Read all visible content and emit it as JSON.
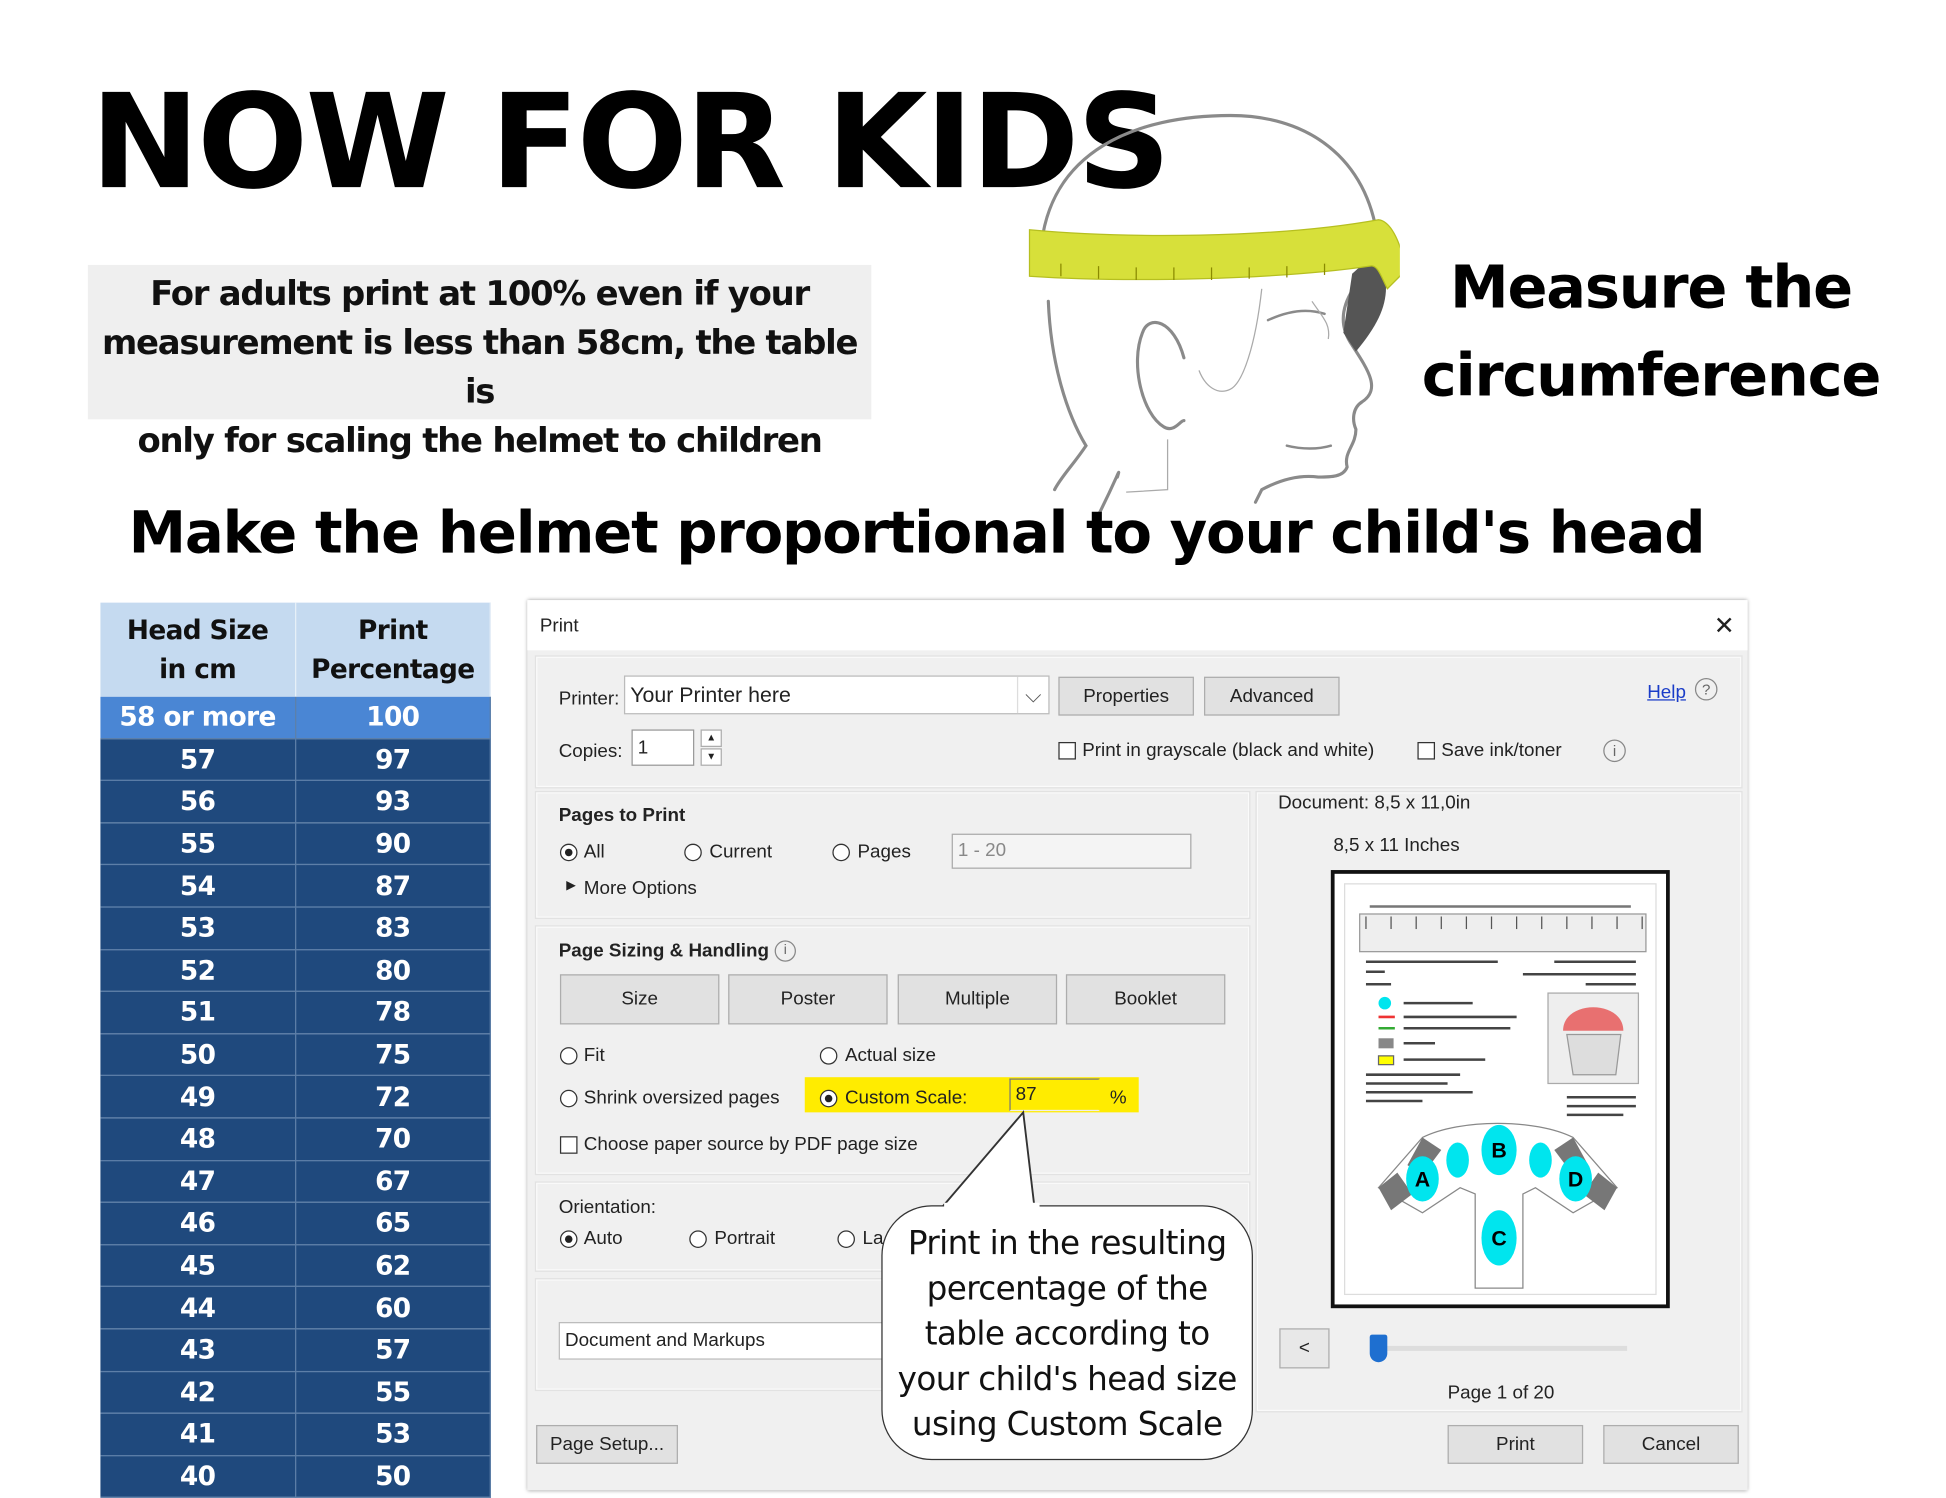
{
  "poster": {
    "title": "NOW FOR KIDS",
    "note_lines": [
      "For adults print at 100% even if your",
      "measurement is less than 58cm, the table is",
      "only for scaling the helmet to children"
    ],
    "measure_lines": [
      "Measure the",
      "circumference"
    ],
    "subtitle": "Make the helmet proportional to your child's head",
    "callout_lines": [
      "Print in the resulting",
      "percentage of the",
      "table according to",
      "your child's head size",
      "using Custom Scale"
    ]
  },
  "table": {
    "headers": [
      [
        "Head Size",
        "in cm"
      ],
      [
        "Print",
        "Percentage"
      ]
    ],
    "rows": [
      [
        "58 or more",
        "100"
      ],
      [
        "57",
        "97"
      ],
      [
        "56",
        "93"
      ],
      [
        "55",
        "90"
      ],
      [
        "54",
        "87"
      ],
      [
        "53",
        "83"
      ],
      [
        "52",
        "80"
      ],
      [
        "51",
        "78"
      ],
      [
        "50",
        "75"
      ],
      [
        "49",
        "72"
      ],
      [
        "48",
        "70"
      ],
      [
        "47",
        "67"
      ],
      [
        "46",
        "65"
      ],
      [
        "45",
        "62"
      ],
      [
        "44",
        "60"
      ],
      [
        "43",
        "57"
      ],
      [
        "42",
        "55"
      ],
      [
        "41",
        "53"
      ],
      [
        "40",
        "50"
      ]
    ],
    "colors": {
      "header": "#c5daf0",
      "highlight": "#4a86d4",
      "row": "#1f497d"
    }
  },
  "dialog": {
    "title": "Print",
    "printer_label": "Printer:",
    "printer_value": "Your Printer here",
    "properties": "Properties",
    "advanced": "Advanced",
    "help": "Help",
    "copies_label": "Copies:",
    "copies_value": "1",
    "grayscale": "Print in grayscale (black and white)",
    "save_ink": "Save ink/toner",
    "pages_to_print": {
      "heading": "Pages to Print",
      "all": "All",
      "current": "Current",
      "pages": "Pages",
      "pages_placeholder": "1 - 20",
      "more_options": "More Options",
      "selected": "All"
    },
    "sizing": {
      "heading": "Page Sizing & Handling",
      "tabs": [
        "Size",
        "Poster",
        "Multiple",
        "Booklet"
      ],
      "fit": "Fit",
      "actual_size": "Actual size",
      "shrink": "Shrink oversized pages",
      "custom_scale": "Custom Scale:",
      "custom_scale_value": "87",
      "percent": "%",
      "paper_source": "Choose paper source by PDF page size",
      "selected": "Custom Scale",
      "highlight_color": "#ffec00"
    },
    "orientation": {
      "heading": "Orientation:",
      "auto": "Auto",
      "portrait": "Portrait",
      "landscape_partial": "La",
      "selected": "Auto"
    },
    "comments_forms_value": "Document and Markups",
    "preview": {
      "document_size": "Document: 8,5 x 11,0in",
      "paper_size": "8,5 x 11 Inches",
      "piece_labels": [
        "A",
        "B",
        "C",
        "D"
      ],
      "page_indicator": "Page 1 of 20",
      "prev": "<"
    },
    "page_setup": "Page Setup...",
    "print": "Print",
    "cancel": "Cancel"
  }
}
